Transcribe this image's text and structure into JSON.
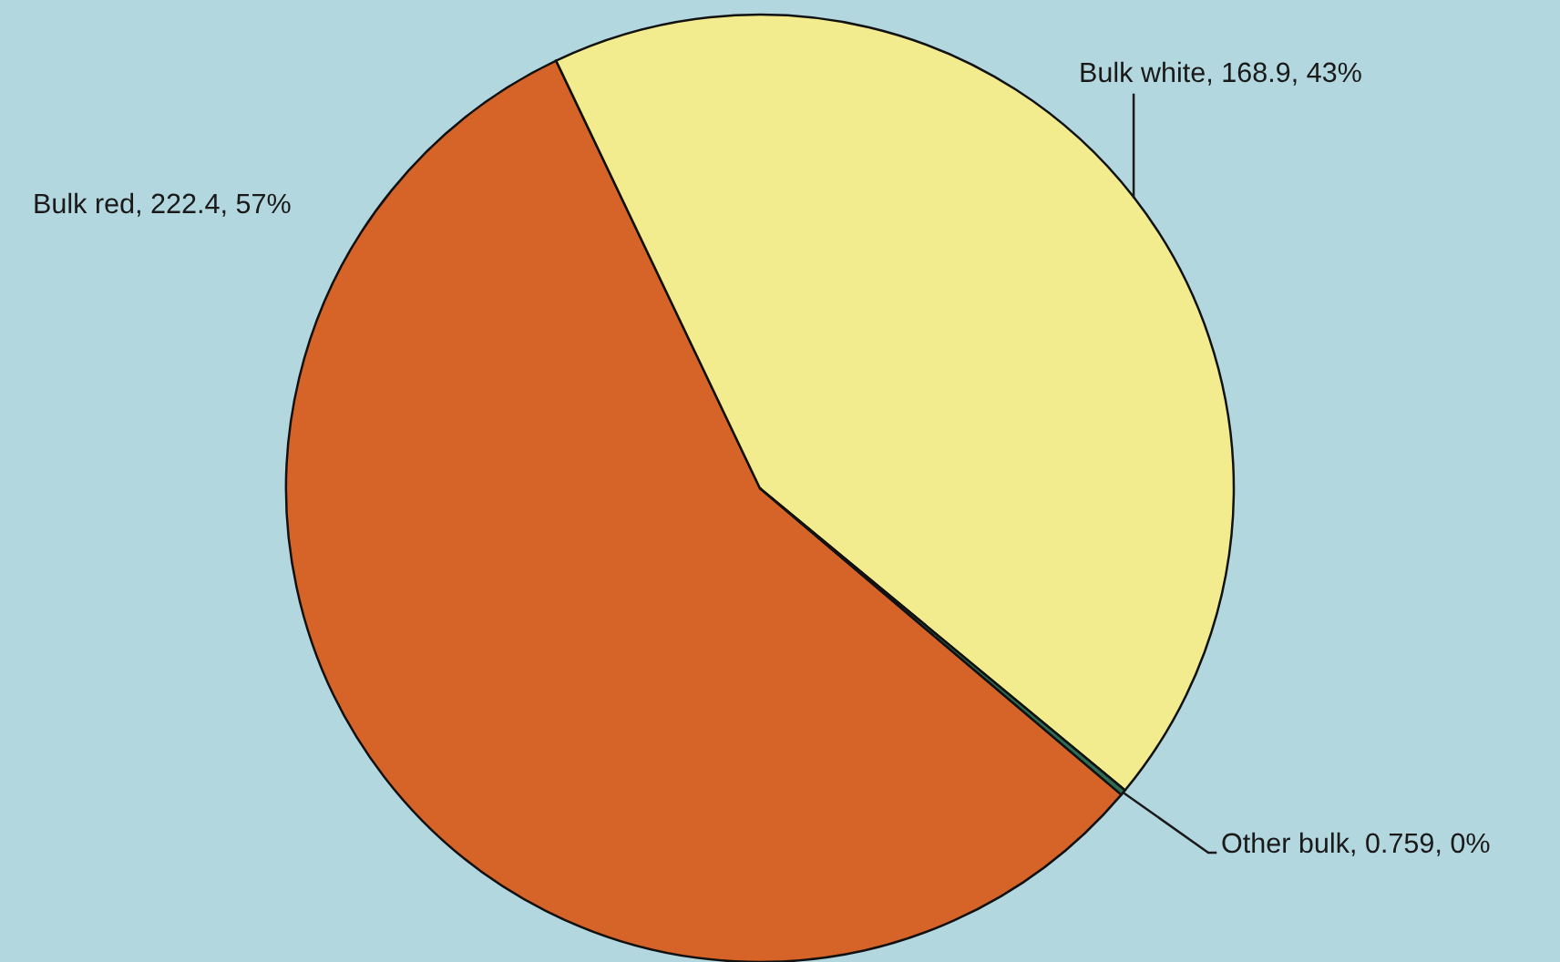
{
  "chart_data": {
    "type": "pie",
    "categories": [
      "Bulk red",
      "Bulk white",
      "Other bulk"
    ],
    "values": [
      222.4,
      168.9,
      0.759
    ],
    "colors": [
      "#d66327",
      "#f2ec8f",
      "#2e6e55"
    ],
    "value_labels": [
      "222.4, 57%",
      "168.9, 43%",
      "0.759, 0%"
    ]
  }
}
